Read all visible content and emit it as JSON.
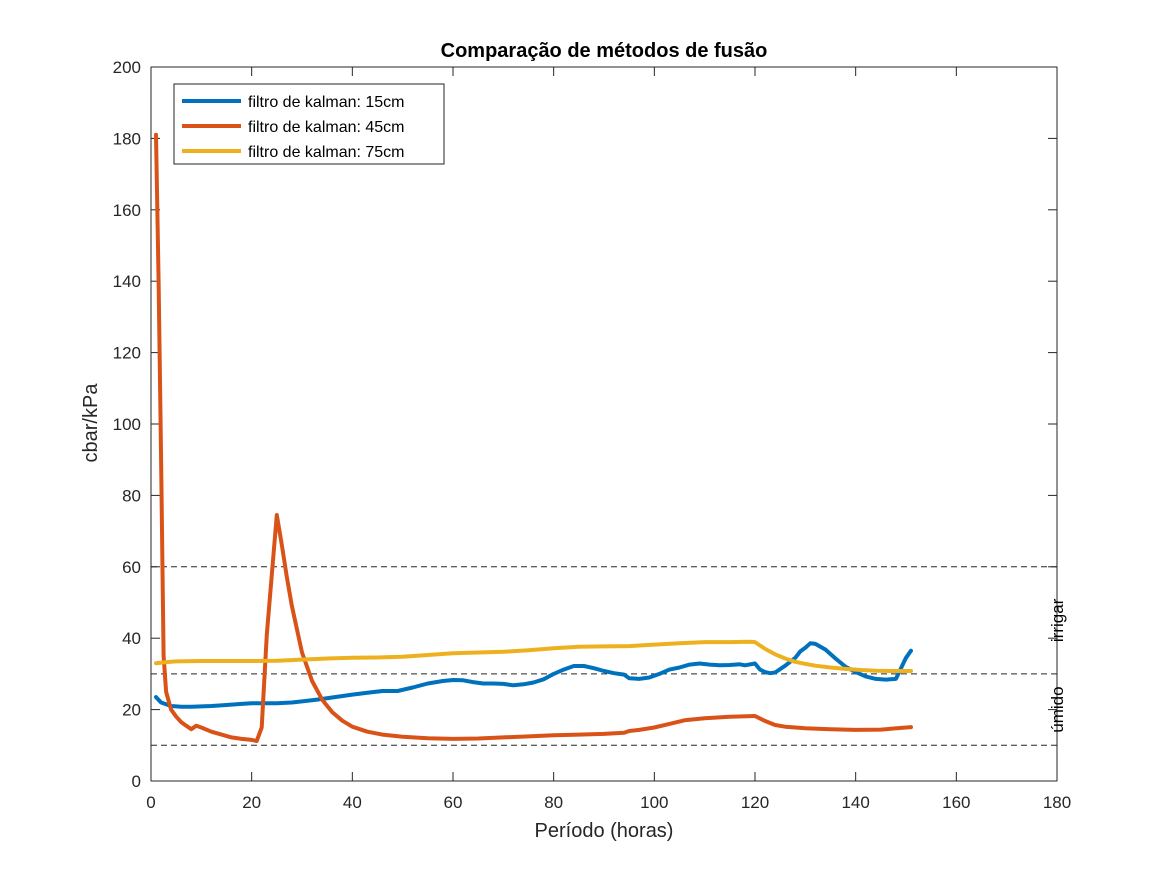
{
  "chart_data": {
    "type": "line",
    "title": "Comparação de métodos de fusão",
    "xlabel": "Período (horas)",
    "ylabel": "cbar/kPa",
    "xlim": [
      0,
      180
    ],
    "ylim": [
      0,
      200
    ],
    "xticks": [
      0,
      20,
      40,
      60,
      80,
      100,
      120,
      140,
      160,
      180
    ],
    "yticks": [
      0,
      20,
      40,
      60,
      80,
      100,
      120,
      140,
      160,
      180,
      200
    ],
    "grid": false,
    "legend_position": "top-left",
    "series": [
      {
        "name": "filtro de kalman: 15cm",
        "color": "#0072BD",
        "x": [
          1,
          2,
          4,
          6,
          8,
          10,
          12,
          15,
          18,
          20,
          22,
          25,
          28,
          30,
          33,
          36,
          40,
          44,
          46,
          49,
          52,
          55,
          58,
          60,
          62,
          64,
          66,
          68,
          70,
          72,
          74,
          76,
          78,
          80,
          82,
          84,
          86,
          88,
          90,
          92,
          94,
          95,
          97,
          99,
          101,
          103,
          105,
          107,
          109,
          111,
          113,
          115,
          117,
          118,
          120,
          121,
          122,
          123,
          124,
          126,
          128,
          129,
          130,
          131,
          132,
          134,
          136,
          138,
          140,
          142,
          144,
          146,
          148,
          150,
          151
        ],
        "y": [
          23.5,
          22,
          21,
          20.8,
          20.8,
          20.9,
          21,
          21.3,
          21.6,
          21.8,
          21.8,
          21.8,
          22,
          22.3,
          22.8,
          23.4,
          24.2,
          24.9,
          25.2,
          25.2,
          26.2,
          27.3,
          28,
          28.3,
          28.2,
          27.7,
          27.3,
          27.3,
          27.2,
          26.8,
          27.1,
          27.6,
          28.5,
          30,
          31.2,
          32.2,
          32.2,
          31.6,
          30.8,
          30.2,
          29.8,
          28.8,
          28.6,
          29,
          30,
          31.2,
          31.8,
          32.6,
          32.9,
          32.6,
          32.4,
          32.5,
          32.7,
          32.4,
          32.9,
          31.2,
          30.5,
          30.2,
          30.4,
          32.3,
          34.5,
          36.3,
          37.3,
          38.6,
          38.4,
          36.8,
          34.3,
          32,
          30.5,
          29.3,
          28.6,
          28.4,
          28.6,
          34.5,
          36.5
        ]
      },
      {
        "name": "filtro de kalman: 45cm",
        "color": "#D95319",
        "x": [
          1,
          1.5,
          2,
          2.5,
          3,
          4,
          5,
          6,
          7,
          8,
          9,
          10,
          12,
          14,
          16,
          18,
          20,
          21,
          22,
          23,
          25,
          26,
          27,
          28,
          30,
          32,
          34,
          36,
          38,
          40,
          43,
          46,
          50,
          55,
          60,
          65,
          70,
          75,
          80,
          85,
          90,
          94,
          95,
          97,
          100,
          103,
          106,
          110,
          115,
          120,
          122,
          124,
          126,
          130,
          135,
          140,
          145,
          151
        ],
        "y": [
          181,
          140,
          90,
          35,
          25,
          20,
          18,
          16.5,
          15.5,
          14.5,
          15.5,
          15,
          13.8,
          13,
          12.2,
          11.8,
          11.5,
          11.2,
          15,
          41,
          74.5,
          66,
          57,
          49,
          36,
          28,
          22.8,
          19.3,
          16.9,
          15.2,
          13.8,
          13,
          12.4,
          12,
          11.8,
          11.9,
          12.2,
          12.5,
          12.8,
          13,
          13.2,
          13.5,
          14,
          14.3,
          15,
          16,
          17,
          17.6,
          18,
          18.2,
          16.8,
          15.7,
          15.2,
          14.8,
          14.5,
          14.3,
          14.4,
          15.1
        ]
      },
      {
        "name": "filtro de kalman: 75cm",
        "color": "#EDB120",
        "x": [
          1,
          3,
          5,
          10,
          15,
          20,
          25,
          30,
          35,
          40,
          45,
          50,
          55,
          60,
          65,
          70,
          75,
          80,
          85,
          90,
          95,
          100,
          105,
          110,
          115,
          119,
          120,
          122,
          124,
          126,
          128,
          130,
          132,
          135,
          138,
          141,
          144,
          147,
          151
        ],
        "y": [
          33,
          33.3,
          33.5,
          33.6,
          33.6,
          33.6,
          33.7,
          34,
          34.3,
          34.5,
          34.6,
          34.8,
          35.3,
          35.8,
          36,
          36.2,
          36.6,
          37.2,
          37.6,
          37.7,
          37.8,
          38.2,
          38.6,
          38.9,
          38.9,
          39,
          38.9,
          37,
          35.5,
          34.3,
          33.4,
          32.8,
          32.3,
          31.8,
          31.4,
          31.1,
          30.9,
          30.8,
          30.8
        ]
      }
    ],
    "reference_lines": [
      {
        "y": 60,
        "style": "dashed",
        "color": "#262626"
      },
      {
        "y": 30,
        "style": "dashed",
        "color": "#262626"
      },
      {
        "y": 10,
        "style": "dashed",
        "color": "#262626"
      }
    ],
    "annotations": [
      {
        "text": "irrigar",
        "y_from": 30,
        "y_to": 60
      },
      {
        "text": "úmido",
        "y_from": 10,
        "y_to": 30
      }
    ]
  }
}
